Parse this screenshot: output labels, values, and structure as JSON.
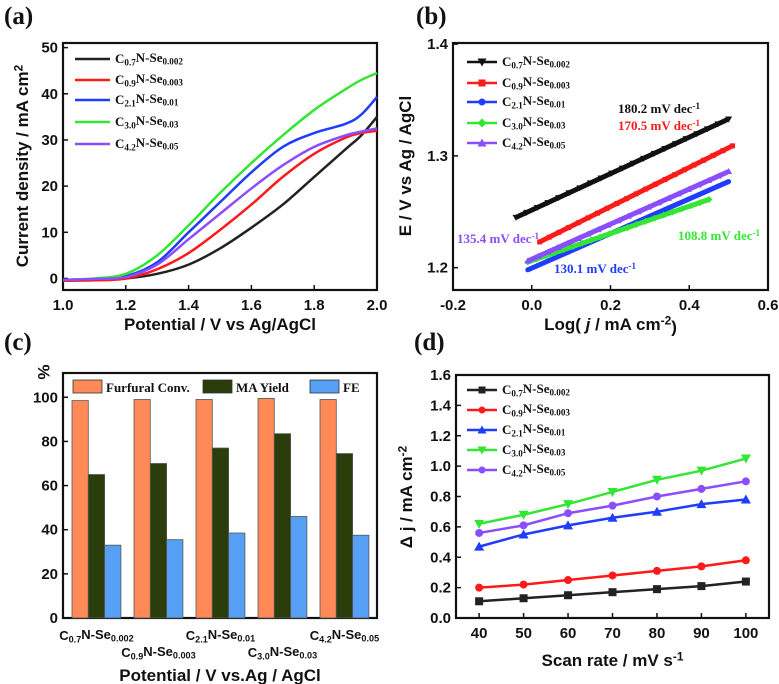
{
  "chart_data": [
    {
      "panel": "(a)",
      "type": "line",
      "xlabel": [
        {
          "t": "Potential / V vs Ag/AgCl"
        }
      ],
      "ylabel": [
        {
          "t": "Current density / mA cm"
        },
        {
          "t": "2",
          "sup": true
        }
      ],
      "xlim": [
        1.0,
        2.0
      ],
      "ylim": [
        -2.5,
        51
      ],
      "xticks": [
        "1.0",
        "1.2",
        "1.4",
        "1.6",
        "1.8",
        "2.0"
      ],
      "yticks": [
        "0",
        "10",
        "20",
        "30",
        "40",
        "50"
      ],
      "legend": "top-left",
      "x": [
        1.0,
        1.1,
        1.2,
        1.3,
        1.4,
        1.5,
        1.6,
        1.7,
        1.8,
        1.9,
        1.95,
        2.0
      ],
      "series": [
        {
          "name": "C0.7N-Se0.002",
          "color": "#222222",
          "values": [
            -0.5,
            -0.3,
            0,
            1,
            3,
            6.5,
            11,
            16,
            22,
            28,
            31,
            35
          ]
        },
        {
          "name": "C0.9N-Se0.003",
          "color": "#ff1a1a",
          "values": [
            -0.5,
            -0.4,
            0,
            2,
            5.5,
            10.5,
            16,
            22,
            27,
            30.5,
            31.5,
            32
          ]
        },
        {
          "name": "C2.1N-Se0.01",
          "color": "#1f3cff",
          "values": [
            -0.3,
            -0.1,
            0.5,
            3.5,
            10,
            16.5,
            23,
            28.5,
            31.5,
            33.5,
            35.5,
            39.3
          ]
        },
        {
          "name": "C3.0N-Se0.03",
          "color": "#33e633",
          "values": [
            -0.3,
            0,
            1,
            5,
            11.5,
            18.5,
            25,
            31,
            36.5,
            41,
            43,
            44.5
          ]
        },
        {
          "name": "C4.2N-Se0.05",
          "color": "#8a4dff",
          "values": [
            -0.3,
            -0.1,
            0.3,
            3,
            8.5,
            14,
            19.5,
            24.5,
            28.5,
            31,
            31.8,
            32.5
          ]
        }
      ]
    },
    {
      "panel": "(b)",
      "type": "line",
      "xlabel": [
        {
          "t": "Log( "
        },
        {
          "t": "j",
          "i": true
        },
        {
          "t": " / mA cm"
        },
        {
          "t": "-2",
          "sup": true
        },
        {
          "t": ")"
        }
      ],
      "ylabel": [
        {
          "t": "E / V vs Ag / AgCl"
        }
      ],
      "xlim": [
        -0.2,
        0.6
      ],
      "ylim": [
        1.18,
        1.401
      ],
      "xticks": [
        "-0.2",
        "0.0",
        "0.2",
        "0.4",
        "0.6"
      ],
      "yticks": [
        "1.2",
        "1.3",
        "1.4"
      ],
      "legend": "top-left",
      "series": [
        {
          "name": "C0.7N-Se0.002",
          "color": "#111111",
          "marker": "tri-down",
          "x": [
            -0.04,
            0.5
          ],
          "values": [
            1.245,
            1.333
          ],
          "tafel": "180.2 mV dec",
          "tafel_sup": "-1"
        },
        {
          "name": "C0.9N-Se0.003",
          "color": "#ff1a1a",
          "marker": "square",
          "x": [
            0.02,
            0.51
          ],
          "values": [
            1.223,
            1.309
          ],
          "tafel": "170.5 mV dec",
          "tafel_sup": "-1"
        },
        {
          "name": "C2.1N-Se0.01",
          "color": "#1f3cff",
          "marker": "circle",
          "x": [
            -0.01,
            0.5
          ],
          "values": [
            1.198,
            1.277
          ],
          "tafel": "130.1 mV dec",
          "tafel_sup": "-1"
        },
        {
          "name": "C3.0N-Se0.03",
          "color": "#33e633",
          "marker": "diamond",
          "x": [
            -0.01,
            0.45
          ],
          "values": [
            1.205,
            1.261
          ],
          "tafel": "108.8 mV dec",
          "tafel_sup": "-1"
        },
        {
          "name": "C4.2N-Se0.05",
          "color": "#8a4dff",
          "marker": "tri-up",
          "x": [
            -0.01,
            0.5
          ],
          "values": [
            1.206,
            1.286
          ],
          "tafel": "135.4 mV dec",
          "tafel_sup": "-1"
        }
      ]
    },
    {
      "panel": "(c)",
      "type": "bar",
      "xlabel": [
        {
          "t": "Potential / V vs.Ag / AgCl"
        }
      ],
      "ylabel": [
        {
          "t": "%"
        }
      ],
      "ylim": [
        0,
        111
      ],
      "yticks": [
        "0",
        "20",
        "40",
        "60",
        "80",
        "100"
      ],
      "legend": "top",
      "categories": [
        "C0.7N-Se0.002",
        "C0.9N-Se0.003",
        "C2.1N-Se0.01",
        "C3.0N-Se0.03",
        "C4.2N-Se0.05"
      ],
      "series": [
        {
          "name": "Furfural Conv.",
          "color": "#ff8a57",
          "values": [
            98.5,
            99,
            99,
            99.5,
            99
          ]
        },
        {
          "name": "MA Yield",
          "color": "#2b3d0a",
          "values": [
            65,
            70,
            77,
            83.5,
            74.5
          ]
        },
        {
          "name": "FE",
          "color": "#55a0f5",
          "values": [
            33,
            35.5,
            38.5,
            46,
            37.5
          ]
        }
      ]
    },
    {
      "panel": "(d)",
      "type": "line",
      "xlabel": [
        {
          "t": "Scan rate / mV s"
        },
        {
          "t": "-1",
          "sup": true
        }
      ],
      "ylabel": [
        {
          "t": "Δ j / mA cm"
        },
        {
          "t": "-2",
          "sup": true
        }
      ],
      "xlim": [
        34.8,
        105.2
      ],
      "ylim": [
        0,
        1.6
      ],
      "xticks": [
        "40",
        "50",
        "60",
        "70",
        "80",
        "90",
        "100"
      ],
      "yticks": [
        "0.0",
        "0.2",
        "0.4",
        "0.6",
        "0.8",
        "1.0",
        "1.2",
        "1.4",
        "1.6"
      ],
      "legend": "top-left",
      "x": [
        40,
        50,
        60,
        70,
        80,
        90,
        100
      ],
      "series": [
        {
          "name": "C0.7N-Se0.002",
          "color": "#222222",
          "marker": "square",
          "values": [
            0.11,
            0.13,
            0.15,
            0.17,
            0.19,
            0.21,
            0.24
          ]
        },
        {
          "name": "C0.9N-Se0.003",
          "color": "#ff1a1a",
          "marker": "circle",
          "values": [
            0.2,
            0.22,
            0.25,
            0.28,
            0.31,
            0.34,
            0.38
          ]
        },
        {
          "name": "C2.1N-Se0.01",
          "color": "#1f3cff",
          "marker": "tri-up",
          "values": [
            0.47,
            0.55,
            0.61,
            0.66,
            0.7,
            0.75,
            0.78
          ]
        },
        {
          "name": "C3.0N-Se0.03",
          "color": "#33e633",
          "marker": "tri-down",
          "values": [
            0.62,
            0.68,
            0.75,
            0.83,
            0.91,
            0.97,
            1.05
          ]
        },
        {
          "name": "C4.2N-Se0.05",
          "color": "#8a4dff",
          "marker": "circle",
          "values": [
            0.56,
            0.61,
            0.69,
            0.74,
            0.8,
            0.85,
            0.9
          ]
        }
      ]
    }
  ]
}
